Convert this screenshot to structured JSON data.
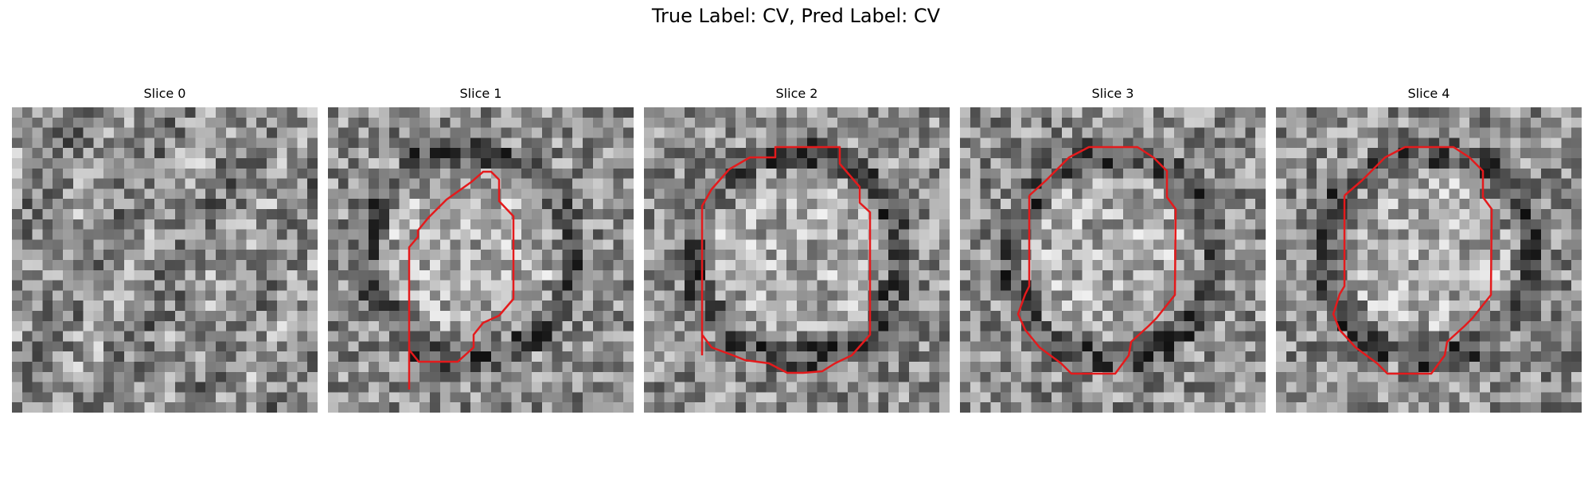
{
  "figure": {
    "title": "True Label: CV, Pred Label: CV",
    "outline_color": "#e41a1c"
  },
  "panels": [
    {
      "title": "Slice 0",
      "has_outline": false,
      "image": "grayscale-noise-patch"
    },
    {
      "title": "Slice 1",
      "has_outline": true,
      "image": "grayscale-noise-patch-with-ring"
    },
    {
      "title": "Slice 2",
      "has_outline": true,
      "image": "grayscale-noise-patch-with-ring"
    },
    {
      "title": "Slice 3",
      "has_outline": true,
      "image": "grayscale-noise-patch-with-ring"
    },
    {
      "title": "Slice 4",
      "has_outline": true,
      "image": "grayscale-noise-patch-with-ring"
    }
  ]
}
